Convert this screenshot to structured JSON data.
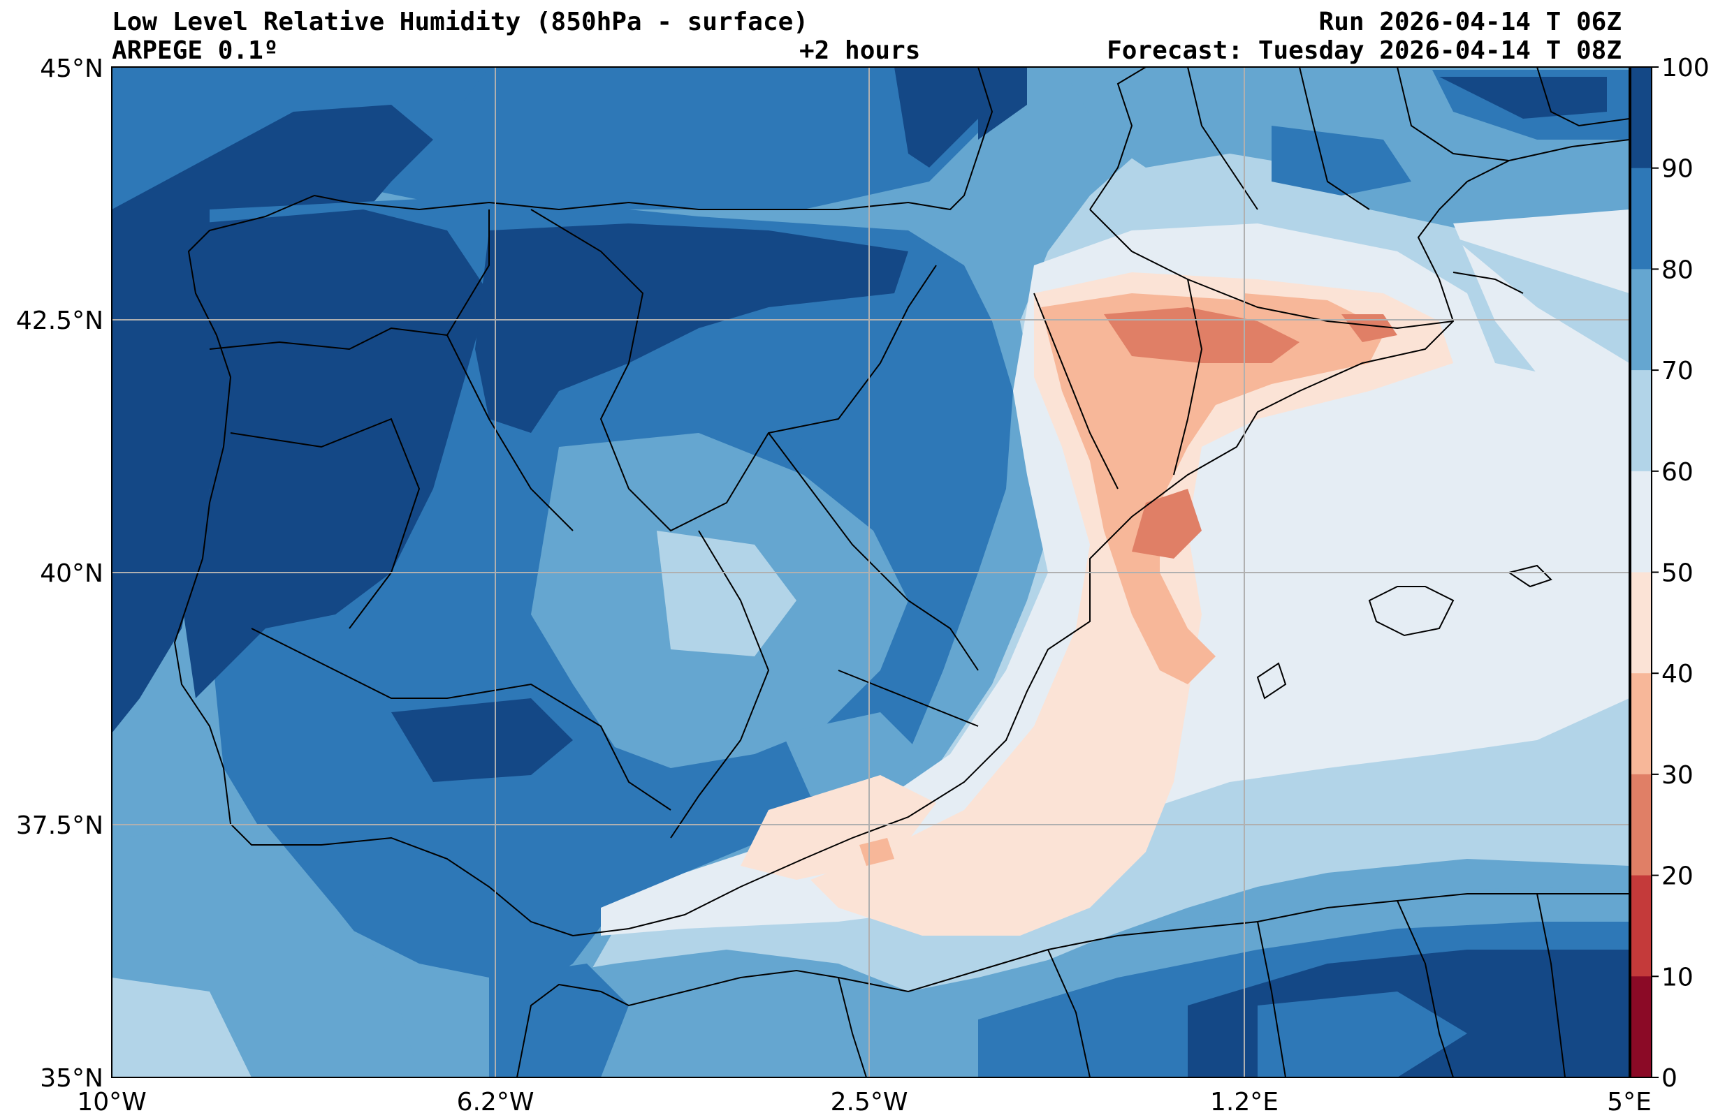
{
  "header": {
    "title": "Low Level Relative Humidity (850hPa - surface)",
    "model": "ARPEGE 0.1º",
    "lead_time": "+2 hours",
    "run": "Run 2026-04-14 T 06Z",
    "forecast": "Forecast: Tuesday 2026-04-14 T 08Z"
  },
  "axes": {
    "lon_labels": [
      "10°W",
      "6.2°W",
      "2.5°W",
      "1.2°E",
      "5°E"
    ],
    "lat_labels": [
      "45°N",
      "42.5°N",
      "40°N",
      "37.5°N",
      "35°N"
    ]
  },
  "colorbar": {
    "ticks": [
      "100",
      "90",
      "80",
      "70",
      "60",
      "50",
      "40",
      "30",
      "20",
      "10",
      "0"
    ],
    "bins": [
      {
        "range": "90-100",
        "color": "#144886"
      },
      {
        "range": "80-90",
        "color": "#2e78b7"
      },
      {
        "range": "70-80",
        "color": "#65a6d0"
      },
      {
        "range": "60-70",
        "color": "#b2d4e8"
      },
      {
        "range": "50-60",
        "color": "#e5edf4"
      },
      {
        "range": "40-50",
        "color": "#fbe3d6"
      },
      {
        "range": "30-40",
        "color": "#f7b799"
      },
      {
        "range": "20-30",
        "color": "#e07f66"
      },
      {
        "range": "10-20",
        "color": "#c43a3a"
      },
      {
        "range": "0-10",
        "color": "#8b0a26"
      }
    ]
  }
}
